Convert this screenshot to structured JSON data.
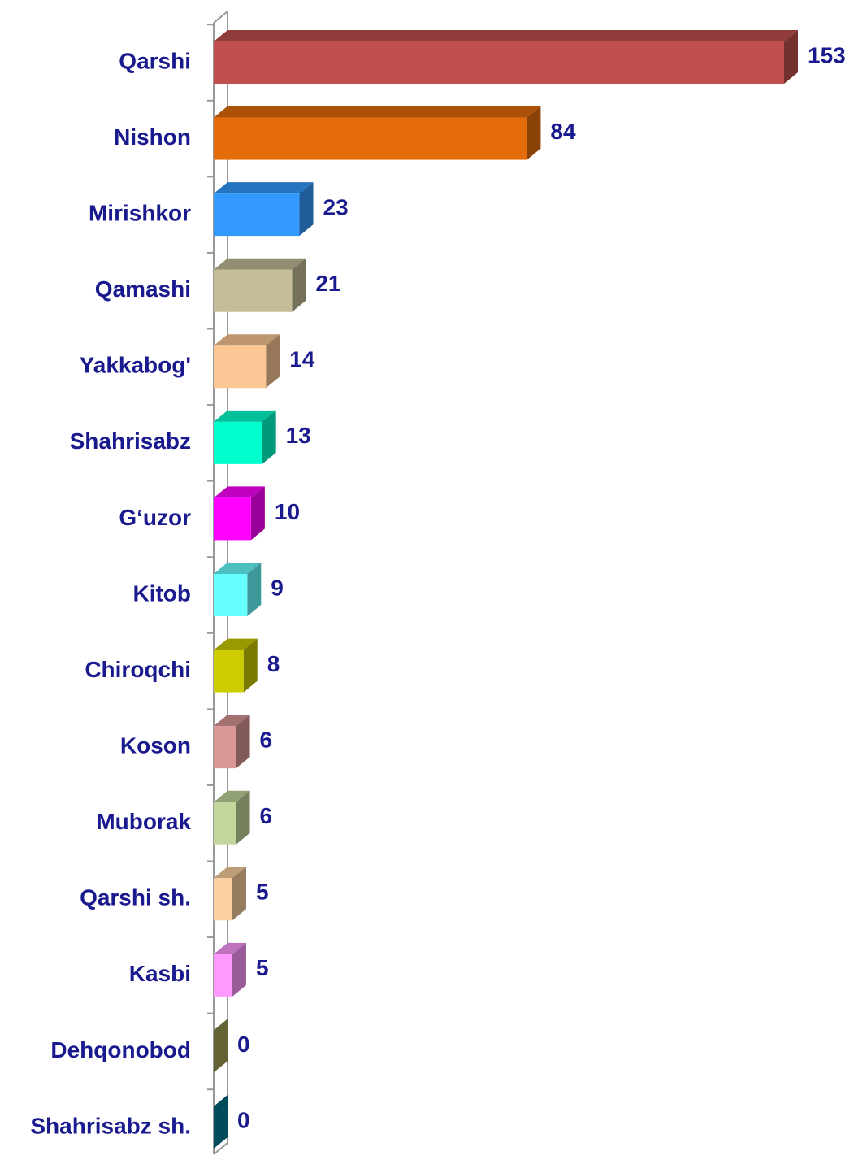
{
  "chart_data": {
    "type": "bar3d-horizontal",
    "categories": [
      "Qarshi",
      "Nishon",
      "Mirishkor",
      "Qamashi",
      "Yakkabog'",
      "Shahrisabz",
      "G‘uzor",
      "Kitob",
      "Chiroqchi",
      "Koson",
      "Muborak",
      "Qarshi sh.",
      "Kasbi",
      "Dehqonobod",
      "Shahrisabz sh."
    ],
    "values": [
      153,
      84,
      23,
      21,
      14,
      13,
      10,
      9,
      8,
      6,
      6,
      5,
      5,
      0,
      0
    ],
    "colors": [
      "#c0504d",
      "#e46c0a",
      "#3399ff",
      "#c4bd97",
      "#fcc794",
      "#00ffcc",
      "#ff00ff",
      "#66ffff",
      "#cccc00",
      "#d99694",
      "#c3d69b",
      "#fcd0a0",
      "#ff99ff",
      "#a5a55a",
      "#007f99"
    ]
  }
}
